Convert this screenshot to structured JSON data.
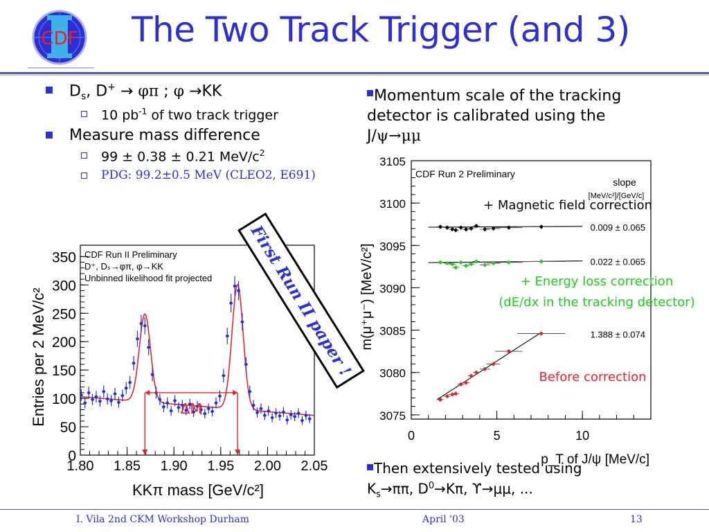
{
  "slide": {
    "title": "The Two Track Trigger (and 3)",
    "logo_text": "CDF",
    "colors": {
      "title": "#2a2fd6",
      "bullet": "#2a2fd6",
      "hist_fit": "#e8202a",
      "hist_points": "#1f2fd6",
      "green_series": "#18d018",
      "red_series": "#e8202a"
    }
  },
  "left_bullets": {
    "b1": {
      "prefix": "D",
      "sub": "s",
      "mid1": ", D",
      "sup": "+",
      "mid2": " → ",
      "greek1": "φπ",
      "mid3": " ; ",
      "greek2": "φ",
      "mid4": " →KK"
    },
    "b1_sub": {
      "pre": "10 pb",
      "sup": "-1",
      "post": " of two track trigger"
    },
    "b2": "Measure mass difference",
    "b2_sub1": {
      "pre": " 99 ± 0.38 ± 0.21 MeV/c",
      "sup": "2"
    },
    "b2_sub2": "PDG: 99.2±0.5 MeV (CLEO2, E691)"
  },
  "right_text": {
    "line1": "Momentum scale of the tracking",
    "line2": "detector is calibrated using the",
    "line3_pre": "J/",
    "line3_greek": "ψ→μμ"
  },
  "bottom_text": {
    "line1": "Then extensively tested using",
    "l2_a": "K",
    "l2_a_sub": "s",
    "l2_b": "→ππ, D",
    "l2_b_sup": "0",
    "l2_c": "→Kπ, ϒ→μμ, ..."
  },
  "stamp": "First Run II paper !",
  "footer": {
    "left": "I. Vila  2nd CKM Workshop  Durham",
    "center": "April '03",
    "right": "13"
  },
  "chart_data": [
    {
      "type": "scatter",
      "title": "CDF Run II Preliminary",
      "legend_lines": [
        "D⁺, Dₛ→φπ, φ→KK",
        "Unbinned likelihood fit projected"
      ],
      "xlabel": "KKπ mass [GeV/c²]",
      "ylabel": "Entries per 2 MeV/c²",
      "xlim": [
        1.8,
        2.05
      ],
      "ylim": [
        0,
        370
      ],
      "xticks": [
        "1.80",
        "1.85",
        "1.90",
        "1.95",
        "2.00",
        "2.05"
      ],
      "yticks": [
        "0",
        "50",
        "100",
        "150",
        "200",
        "250",
        "300",
        "350"
      ],
      "annotation": "ΔM",
      "fit": {
        "background": {
          "at_x": [
            1.8,
            2.05
          ],
          "y": [
            103,
            70
          ]
        },
        "peaks": [
          {
            "mean": 1.869,
            "amp": 155,
            "sigma": 0.006
          },
          {
            "mean": 1.968,
            "amp": 220,
            "sigma": 0.006
          }
        ]
      },
      "x": [
        1.801,
        1.805,
        1.809,
        1.813,
        1.817,
        1.821,
        1.825,
        1.829,
        1.833,
        1.837,
        1.841,
        1.845,
        1.849,
        1.853,
        1.857,
        1.861,
        1.865,
        1.869,
        1.873,
        1.877,
        1.881,
        1.885,
        1.889,
        1.893,
        1.897,
        1.901,
        1.905,
        1.909,
        1.913,
        1.917,
        1.921,
        1.925,
        1.929,
        1.933,
        1.937,
        1.941,
        1.945,
        1.949,
        1.953,
        1.957,
        1.961,
        1.965,
        1.969,
        1.973,
        1.977,
        1.981,
        1.985,
        1.989,
        1.993,
        1.997,
        2.001,
        2.005,
        2.009,
        2.013,
        2.017,
        2.021,
        2.025,
        2.029,
        2.033,
        2.037,
        2.041,
        2.045
      ],
      "y": [
        106,
        92,
        110,
        98,
        103,
        95,
        112,
        99,
        96,
        108,
        93,
        105,
        118,
        128,
        162,
        205,
        232,
        228,
        190,
        142,
        110,
        98,
        85,
        92,
        78,
        96,
        84,
        88,
        79,
        90,
        76,
        86,
        80,
        73,
        82,
        77,
        92,
        104,
        140,
        210,
        268,
        298,
        290,
        235,
        160,
        112,
        88,
        75,
        82,
        70,
        78,
        66,
        74,
        69,
        76,
        62,
        71,
        68,
        74,
        61,
        70,
        64
      ]
    },
    {
      "type": "scatter",
      "title": "CDF Run 2 Preliminary",
      "xlabel": "p_T of J/ψ [MeV/c]",
      "ylabel": "m(μ⁺μ⁻) [MeV/c²]",
      "xlim": [
        0,
        14
      ],
      "ylim": [
        3074.5,
        3105
      ],
      "xticks": [
        "0",
        "5",
        "10"
      ],
      "yticks": [
        "3075",
        "3080",
        "3085",
        "3090",
        "3095",
        "3100",
        "3105"
      ],
      "legend_title": "slope",
      "legend_units": "[MeV/c²]/[GeV/c]",
      "annotations": {
        "magnetic": "+ Magnetic field correction",
        "energy1": "+ Energy loss correction",
        "energy2": "(dE/dx in the tracking detector)",
        "before": "Before correction"
      },
      "series": [
        {
          "name": "Before correction",
          "slope_label": "1.388 ± 0.074",
          "fit": {
            "at_x": [
              1.5,
              7.5
            ],
            "y": [
              3076.8,
              3084.6
            ]
          },
          "x": [
            1.7,
            2.1,
            2.4,
            2.6,
            2.9,
            3.2,
            3.5,
            3.8,
            4.3,
            4.8,
            5.7,
            7.6
          ],
          "y": [
            3076.8,
            3077.2,
            3077.4,
            3077.5,
            3078.6,
            3078.8,
            3079.6,
            3080.0,
            3080.4,
            3081.0,
            3082.5,
            3084.6
          ]
        },
        {
          "name": "+ Energy loss correction",
          "slope_label": "0.022 ± 0.065",
          "fit": {
            "at_x": [
              1.0,
              10.0
            ],
            "y": [
              3092.97,
              3093.17
            ]
          },
          "x": [
            1.7,
            2.1,
            2.4,
            2.6,
            2.9,
            3.2,
            3.5,
            3.8,
            4.3,
            4.8,
            5.7,
            7.6
          ],
          "y": [
            3093.0,
            3092.9,
            3092.8,
            3092.4,
            3093.0,
            3092.6,
            3092.8,
            3093.1,
            3092.7,
            3092.9,
            3093.0,
            3093.1
          ]
        },
        {
          "name": "+ Magnetic field correction",
          "slope_label": "0.009 ± 0.065",
          "fit": {
            "at_x": [
              1.0,
              10.0
            ],
            "y": [
              3097.15,
              3097.25
            ]
          },
          "x": [
            1.7,
            2.1,
            2.4,
            2.6,
            2.9,
            3.2,
            3.5,
            3.8,
            4.3,
            4.8,
            5.7,
            7.6
          ],
          "y": [
            3097.2,
            3097.1,
            3096.9,
            3096.8,
            3097.1,
            3096.9,
            3097.0,
            3097.3,
            3096.9,
            3097.0,
            3097.1,
            3097.2
          ]
        }
      ]
    }
  ]
}
